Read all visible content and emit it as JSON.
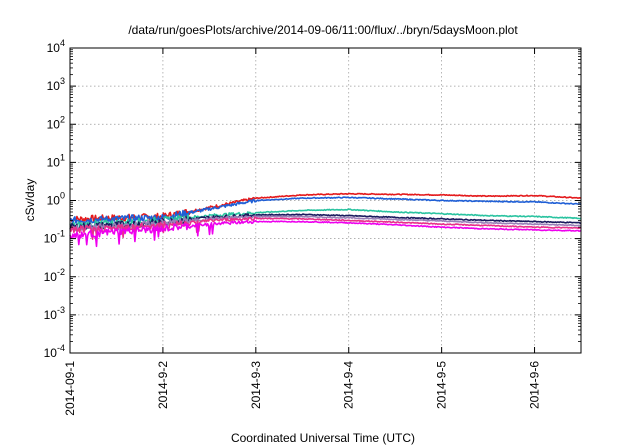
{
  "chart_data": {
    "type": "line",
    "title": "/data/run/goesPlots/archive/2014-09-06/11:00/flux/../bryn/5daysMoon.plot",
    "xlabel": "Coordinated Universal Time (UTC)",
    "ylabel": "cSv/day",
    "yscale": "log",
    "ylim": [
      0.0001,
      10000
    ],
    "xlim_days": [
      0,
      5.5
    ],
    "grid": true,
    "y_ticks": [
      {
        "base": "10",
        "exp": "-4",
        "value": 0.0001
      },
      {
        "base": "10",
        "exp": "-3",
        "value": 0.001
      },
      {
        "base": "10",
        "exp": "-2",
        "value": 0.01
      },
      {
        "base": "10",
        "exp": "-1",
        "value": 0.1
      },
      {
        "base": "10",
        "exp": "0",
        "value": 1
      },
      {
        "base": "10",
        "exp": "1",
        "value": 10
      },
      {
        "base": "10",
        "exp": "2",
        "value": 100
      },
      {
        "base": "10",
        "exp": "3",
        "value": 1000
      },
      {
        "base": "10",
        "exp": "4",
        "value": 10000
      }
    ],
    "x_ticks": [
      "2014-09-1",
      "2014-9-2",
      "2014-9-3",
      "2014-9-4",
      "2014-9-5",
      "2014-9-6"
    ],
    "series": [
      {
        "color": "#e41a1c",
        "x": [
          "2014-09-01",
          "2014-09-01 12:00",
          "2014-09-02",
          "2014-09-02 12:00",
          "2014-09-03",
          "2014-09-03 12:00",
          "2014-09-04",
          "2014-09-04 12:00",
          "2014-09-05",
          "2014-09-05 12:00",
          "2014-09-06",
          "2014-09-06 12:00"
        ],
        "y": [
          0.32,
          0.35,
          0.38,
          0.65,
          1.15,
          1.4,
          1.5,
          1.45,
          1.4,
          1.3,
          1.35,
          1.15
        ]
      },
      {
        "color": "#1f5fd6",
        "x": [
          "2014-09-01",
          "2014-09-01 12:00",
          "2014-09-02",
          "2014-09-02 12:00",
          "2014-09-03",
          "2014-09-03 12:00",
          "2014-09-04",
          "2014-09-04 12:00",
          "2014-09-05",
          "2014-09-05 12:00",
          "2014-09-06",
          "2014-09-06 12:00"
        ],
        "y": [
          0.3,
          0.33,
          0.36,
          0.6,
          1.0,
          1.15,
          1.2,
          1.1,
          1.0,
          0.95,
          0.92,
          0.8
        ]
      },
      {
        "color": "#2ac3a0",
        "x": [
          "2014-09-01",
          "2014-09-01 12:00",
          "2014-09-02",
          "2014-09-02 12:00",
          "2014-09-03",
          "2014-09-03 12:00",
          "2014-09-04",
          "2014-09-04 12:00",
          "2014-09-05",
          "2014-09-05 12:00",
          "2014-09-06",
          "2014-09-06 12:00"
        ],
        "y": [
          0.22,
          0.26,
          0.3,
          0.4,
          0.48,
          0.55,
          0.58,
          0.5,
          0.45,
          0.4,
          0.38,
          0.34
        ]
      },
      {
        "color": "#1a1a5e",
        "x": [
          "2014-09-01",
          "2014-09-01 12:00",
          "2014-09-02",
          "2014-09-02 12:00",
          "2014-09-03",
          "2014-09-03 12:00",
          "2014-09-04",
          "2014-09-04 12:00",
          "2014-09-05",
          "2014-09-05 12:00",
          "2014-09-06",
          "2014-09-06 12:00"
        ],
        "y": [
          0.2,
          0.23,
          0.27,
          0.36,
          0.42,
          0.43,
          0.4,
          0.36,
          0.33,
          0.3,
          0.28,
          0.26
        ]
      },
      {
        "color": "#9a7fb8",
        "x": [
          "2014-09-01",
          "2014-09-01 12:00",
          "2014-09-02",
          "2014-09-02 12:00",
          "2014-09-03",
          "2014-09-03 12:00",
          "2014-09-04",
          "2014-09-04 12:00",
          "2014-09-05",
          "2014-09-05 12:00",
          "2014-09-06",
          "2014-09-06 12:00"
        ],
        "y": [
          0.18,
          0.21,
          0.25,
          0.33,
          0.38,
          0.38,
          0.35,
          0.32,
          0.29,
          0.26,
          0.24,
          0.22
        ]
      },
      {
        "color": "#e8308a",
        "x": [
          "2014-09-01",
          "2014-09-01 12:00",
          "2014-09-02",
          "2014-09-02 12:00",
          "2014-09-03",
          "2014-09-03 12:00",
          "2014-09-04",
          "2014-09-04 12:00",
          "2014-09-05",
          "2014-09-05 12:00",
          "2014-09-06",
          "2014-09-06 12:00"
        ],
        "y": [
          0.17,
          0.19,
          0.23,
          0.3,
          0.34,
          0.33,
          0.3,
          0.27,
          0.24,
          0.22,
          0.2,
          0.19
        ]
      },
      {
        "color": "#ee00ee",
        "x": [
          "2014-09-01",
          "2014-09-01 12:00",
          "2014-09-02",
          "2014-09-02 12:00",
          "2014-09-03",
          "2014-09-03 12:00",
          "2014-09-04",
          "2014-09-04 12:00",
          "2014-09-05",
          "2014-09-05 12:00",
          "2014-09-06",
          "2014-09-06 12:00"
        ],
        "y": [
          0.12,
          0.15,
          0.18,
          0.24,
          0.28,
          0.28,
          0.26,
          0.23,
          0.2,
          0.18,
          0.17,
          0.16
        ]
      }
    ]
  }
}
